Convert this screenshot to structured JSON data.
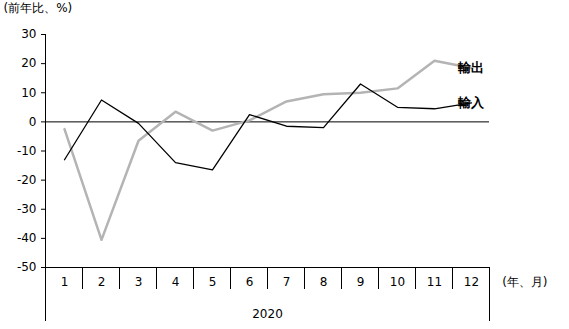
{
  "chart_data": {
    "type": "line",
    "y_label": "(前年比、%)",
    "x_label": "(年、月)",
    "x_group": "2020",
    "categories": [
      "1",
      "2",
      "3",
      "4",
      "5",
      "6",
      "7",
      "8",
      "9",
      "10",
      "11",
      "12"
    ],
    "series": [
      {
        "name": "輸出",
        "color": "#b4b4b4",
        "values": [
          -2.5,
          -40.5,
          -6.5,
          3.5,
          -3,
          0.5,
          7,
          9.5,
          10,
          11.5,
          21,
          18.5
        ]
      },
      {
        "name": "輸入",
        "color": "#000000",
        "values": [
          -13,
          7.5,
          -0.5,
          -14,
          -16.5,
          2.5,
          -1.5,
          -2,
          13,
          5,
          4.5,
          6.5
        ]
      }
    ],
    "ylim": [
      -50,
      30
    ],
    "yticks": [
      -50,
      -40,
      -30,
      -20,
      -10,
      0,
      10,
      20,
      30
    ],
    "grid": false
  }
}
